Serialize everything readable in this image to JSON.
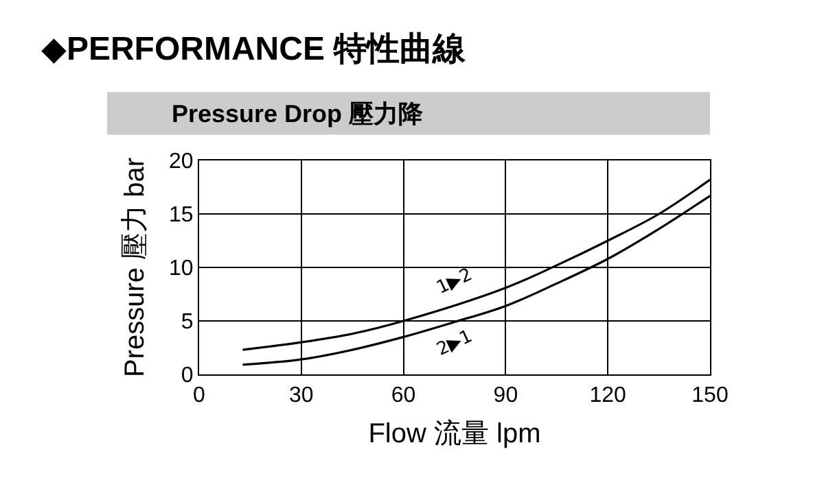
{
  "chart_data": {
    "type": "line",
    "title": "◆PERFORMANCE 特性曲線",
    "subtitle": "Pressure Drop 壓力降",
    "xlabel": "Flow 流量 lpm",
    "ylabel": "Pressure 壓力 bar",
    "series": [
      {
        "name": "1▶2",
        "color": "#000000",
        "x": [
          12.8,
          30,
          45,
          60,
          90,
          105,
          120,
          135,
          150
        ],
        "values": [
          2.3,
          3.0,
          3.8,
          5.0,
          8.1,
          10.2,
          12.5,
          15.0,
          18.2
        ]
      },
      {
        "name": "2▶1",
        "color": "#000000",
        "x": [
          12.8,
          30,
          45,
          60,
          75,
          90,
          105,
          120,
          135,
          150
        ],
        "values": [
          0.9,
          1.4,
          2.3,
          3.5,
          4.9,
          6.4,
          8.5,
          10.8,
          13.6,
          16.7
        ]
      }
    ],
    "xlim": [
      0,
      150
    ],
    "xticks": [
      0,
      30,
      60,
      90,
      120,
      150
    ],
    "ylim": [
      0,
      20
    ],
    "yticks": [
      0,
      5,
      10,
      15,
      20
    ],
    "grid": true,
    "marker": "none",
    "line_style": "solid"
  }
}
